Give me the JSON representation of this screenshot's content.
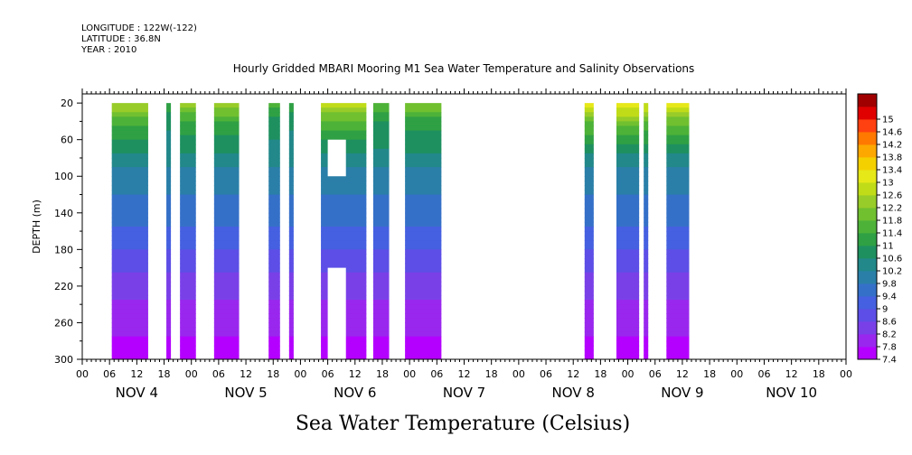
{
  "header": {
    "longitude": "LONGITUDE : 122W(-122)",
    "latitude": "LATITUDE : 36.8N",
    "year": "YEAR : 2010"
  },
  "title": "Hourly Gridded MBARI Mooring M1 Sea Water Temperature and Salinity Observations",
  "bottom_title": "Sea Water Temperature (Celsius)",
  "chart_data": {
    "type": "heatmap",
    "title": "Hourly Gridded MBARI Mooring M1 Sea Water Temperature and Salinity Observations",
    "xlabel": "",
    "ylabel": "DEPTH (m)",
    "colorbar_label": "Sea Water Temperature (Celsius)",
    "x_unit": "hours since 2010-11-04 00:00",
    "xlim": [
      0,
      168
    ],
    "ylim": [
      300,
      10
    ],
    "y_ticks": [
      20,
      60,
      100,
      140,
      180,
      220,
      260,
      300
    ],
    "hour_ticks": [
      "00",
      "06",
      "12",
      "18",
      "00",
      "06",
      "12",
      "18",
      "00",
      "06",
      "12",
      "18",
      "00",
      "06",
      "12",
      "18",
      "00",
      "06",
      "12",
      "18",
      "00",
      "06",
      "12",
      "18",
      "00",
      "06",
      "12",
      "18",
      "00"
    ],
    "day_labels": [
      "NOV  4",
      "NOV  5",
      "NOV  6",
      "NOV  7",
      "NOV  8",
      "NOV  9",
      "NOV 10"
    ],
    "colorbar_levels": [
      7.4,
      7.8,
      8.2,
      8.6,
      9,
      9.4,
      9.8,
      10.2,
      10.6,
      11,
      11.4,
      11.8,
      12.2,
      12.6,
      13,
      13.4,
      13.8,
      14.2,
      14.6,
      15
    ],
    "colorbar_labels": [
      "7.4",
      "7.8",
      "8.2",
      "8.6",
      "9",
      "9.4",
      "9.8",
      "10.2",
      "10.6",
      "11",
      "11.4",
      "11.8",
      "12.2",
      "12.6",
      "13",
      "13.4",
      "13.8",
      "14.2",
      "14.6",
      "15"
    ],
    "colorbar_colors": [
      "#b400ff",
      "#9a27ee",
      "#7a40e8",
      "#5c4ee6",
      "#4560e0",
      "#3570c8",
      "#2a7fa8",
      "#22888a",
      "#1e9060",
      "#2fa044",
      "#4db238",
      "#70c030",
      "#98cc28",
      "#c0dc18",
      "#e6e818",
      "#f5d000",
      "#fca800",
      "#ff7800",
      "#ff4010",
      "#e00000",
      "#a00000"
    ],
    "data_segments_hours": [
      [
        6.5,
        14.5
      ],
      [
        18.5,
        19.5
      ],
      [
        21.5,
        25
      ],
      [
        29,
        34.5
      ],
      [
        41,
        43.5
      ],
      [
        45.5,
        46.5
      ],
      [
        52.5,
        62.5
      ],
      [
        64,
        67.5
      ],
      [
        71,
        79
      ],
      [
        110.5,
        112.5
      ],
      [
        117.5,
        122.5
      ],
      [
        123.5,
        124.5
      ],
      [
        128.5,
        133.5
      ]
    ],
    "gaps": [
      {
        "hours": [
          54,
          58
        ],
        "depth": [
          60,
          100
        ]
      },
      {
        "hours": [
          54,
          58
        ],
        "depth": [
          200,
          300
        ]
      }
    ],
    "depth_profile": {
      "depth": [
        20,
        30,
        40,
        60,
        80,
        100,
        140,
        180,
        220,
        260,
        300
      ],
      "temperature": [
        12.8,
        12.2,
        11.6,
        11.0,
        10.5,
        10.0,
        9.6,
        9.0,
        8.4,
        7.9,
        7.6
      ]
    },
    "surface_temperature_by_segment": [
      12.7,
      11.4,
      12.4,
      12.5,
      11.6,
      11.4,
      12.9,
      11.9,
      12.3,
      13.2,
      13.5,
      13.1,
      13.4
    ]
  }
}
